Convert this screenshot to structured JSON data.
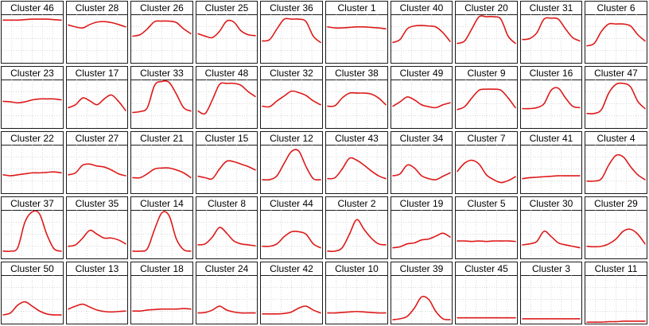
{
  "figure": {
    "rows": 5,
    "cols": 10,
    "line_color": "#dd1a1a",
    "frame_color": "#1a1a1a",
    "grid_color": "#c8c8c8"
  },
  "chart_data": {
    "type": "line",
    "grid": true,
    "x": [
      0,
      1,
      2,
      3,
      4,
      5,
      6,
      7,
      8
    ],
    "ylim": [
      0,
      1
    ],
    "panels": [
      {
        "title": "Cluster 46",
        "values": [
          0.88,
          0.88,
          0.88,
          0.89,
          0.9,
          0.9,
          0.9,
          0.89,
          0.88
        ]
      },
      {
        "title": "Cluster 28",
        "values": [
          0.78,
          0.74,
          0.72,
          0.79,
          0.84,
          0.85,
          0.83,
          0.79,
          0.74
        ]
      },
      {
        "title": "Cluster 26",
        "values": [
          0.55,
          0.58,
          0.7,
          0.85,
          0.86,
          0.86,
          0.83,
          0.7,
          0.6
        ]
      },
      {
        "title": "Cluster 25",
        "values": [
          0.6,
          0.55,
          0.52,
          0.65,
          0.86,
          0.84,
          0.66,
          0.58,
          0.56
        ]
      },
      {
        "title": "Cluster 36",
        "values": [
          0.45,
          0.48,
          0.7,
          0.9,
          0.9,
          0.9,
          0.85,
          0.55,
          0.42
        ]
      },
      {
        "title": "Cluster 1",
        "values": [
          0.74,
          0.72,
          0.72,
          0.73,
          0.74,
          0.74,
          0.73,
          0.72,
          0.7
        ]
      },
      {
        "title": "Cluster 40",
        "values": [
          0.42,
          0.48,
          0.7,
          0.76,
          0.77,
          0.76,
          0.74,
          0.62,
          0.44
        ]
      },
      {
        "title": "Cluster 20",
        "values": [
          0.4,
          0.45,
          0.7,
          0.95,
          0.95,
          0.95,
          0.9,
          0.55,
          0.4
        ]
      },
      {
        "title": "Cluster 31",
        "values": [
          0.48,
          0.5,
          0.62,
          0.9,
          0.92,
          0.9,
          0.7,
          0.52,
          0.45
        ]
      },
      {
        "title": "Cluster 6",
        "values": [
          0.35,
          0.4,
          0.65,
          0.8,
          0.8,
          0.8,
          0.76,
          0.58,
          0.45
        ]
      },
      {
        "title": "Cluster 23",
        "values": [
          0.55,
          0.54,
          0.52,
          0.54,
          0.58,
          0.6,
          0.6,
          0.6,
          0.58
        ]
      },
      {
        "title": "Cluster 17",
        "values": [
          0.42,
          0.48,
          0.62,
          0.56,
          0.48,
          0.6,
          0.68,
          0.55,
          0.36
        ]
      },
      {
        "title": "Cluster 33",
        "values": [
          0.32,
          0.34,
          0.42,
          0.88,
          0.96,
          0.94,
          0.7,
          0.42,
          0.35
        ]
      },
      {
        "title": "Cluster 48",
        "values": [
          0.35,
          0.3,
          0.58,
          0.9,
          0.92,
          0.92,
          0.88,
          0.75,
          0.65
        ]
      },
      {
        "title": "Cluster 32",
        "values": [
          0.45,
          0.44,
          0.56,
          0.66,
          0.76,
          0.73,
          0.67,
          0.56,
          0.48
        ]
      },
      {
        "title": "Cluster 38",
        "values": [
          0.45,
          0.46,
          0.62,
          0.72,
          0.72,
          0.72,
          0.7,
          0.62,
          0.48
        ]
      },
      {
        "title": "Cluster 49",
        "values": [
          0.45,
          0.54,
          0.64,
          0.58,
          0.48,
          0.44,
          0.42,
          0.48,
          0.52
        ]
      },
      {
        "title": "Cluster 9",
        "values": [
          0.38,
          0.44,
          0.62,
          0.78,
          0.8,
          0.8,
          0.78,
          0.62,
          0.42
        ]
      },
      {
        "title": "Cluster 16",
        "values": [
          0.4,
          0.4,
          0.42,
          0.5,
          0.78,
          0.82,
          0.62,
          0.45,
          0.42
        ]
      },
      {
        "title": "Cluster 47",
        "values": [
          0.3,
          0.3,
          0.38,
          0.72,
          0.9,
          0.92,
          0.85,
          0.55,
          0.4
        ]
      },
      {
        "title": "Cluster 22",
        "values": [
          0.38,
          0.36,
          0.38,
          0.4,
          0.42,
          0.42,
          0.43,
          0.44,
          0.42
        ]
      },
      {
        "title": "Cluster 27",
        "values": [
          0.38,
          0.42,
          0.58,
          0.6,
          0.56,
          0.54,
          0.48,
          0.4,
          0.36
        ]
      },
      {
        "title": "Cluster 21",
        "values": [
          0.32,
          0.32,
          0.4,
          0.5,
          0.52,
          0.52,
          0.48,
          0.42,
          0.32
        ]
      },
      {
        "title": "Cluster 15",
        "values": [
          0.35,
          0.32,
          0.3,
          0.5,
          0.66,
          0.65,
          0.6,
          0.55,
          0.48
        ]
      },
      {
        "title": "Cluster 12",
        "values": [
          0.28,
          0.28,
          0.36,
          0.62,
          0.86,
          0.87,
          0.55,
          0.3,
          0.28
        ]
      },
      {
        "title": "Cluster 43",
        "values": [
          0.3,
          0.32,
          0.5,
          0.72,
          0.68,
          0.58,
          0.46,
          0.36,
          0.3
        ]
      },
      {
        "title": "Cluster 34",
        "values": [
          0.36,
          0.4,
          0.58,
          0.52,
          0.36,
          0.3,
          0.28,
          0.35,
          0.42
        ]
      },
      {
        "title": "Cluster 7",
        "values": [
          0.45,
          0.62,
          0.68,
          0.6,
          0.38,
          0.28,
          0.22,
          0.26,
          0.34
        ]
      },
      {
        "title": "Cluster 41",
        "values": [
          0.3,
          0.32,
          0.33,
          0.34,
          0.35,
          0.36,
          0.36,
          0.36,
          0.36
        ]
      },
      {
        "title": "Cluster 4",
        "values": [
          0.25,
          0.25,
          0.3,
          0.58,
          0.78,
          0.75,
          0.55,
          0.38,
          0.28
        ]
      },
      {
        "title": "Cluster 37",
        "values": [
          0.15,
          0.15,
          0.22,
          0.75,
          0.96,
          0.92,
          0.5,
          0.2,
          0.15
        ]
      },
      {
        "title": "Cluster 35",
        "values": [
          0.25,
          0.28,
          0.42,
          0.58,
          0.5,
          0.42,
          0.42,
          0.38,
          0.3
        ]
      },
      {
        "title": "Cluster 14",
        "values": [
          0.15,
          0.15,
          0.2,
          0.6,
          0.94,
          0.88,
          0.4,
          0.18,
          0.15
        ]
      },
      {
        "title": "Cluster 8",
        "values": [
          0.28,
          0.3,
          0.44,
          0.64,
          0.52,
          0.36,
          0.3,
          0.28,
          0.26
        ]
      },
      {
        "title": "Cluster 44",
        "values": [
          0.25,
          0.25,
          0.3,
          0.45,
          0.55,
          0.55,
          0.5,
          0.3,
          0.22
        ]
      },
      {
        "title": "Cluster 2",
        "values": [
          0.15,
          0.15,
          0.22,
          0.5,
          0.8,
          0.6,
          0.42,
          0.3,
          0.28
        ]
      },
      {
        "title": "Cluster 19",
        "values": [
          0.22,
          0.24,
          0.3,
          0.32,
          0.38,
          0.4,
          0.46,
          0.52,
          0.44
        ]
      },
      {
        "title": "Cluster 5",
        "values": [
          0.36,
          0.36,
          0.35,
          0.36,
          0.35,
          0.36,
          0.36,
          0.36,
          0.35
        ]
      },
      {
        "title": "Cluster 30",
        "values": [
          0.28,
          0.3,
          0.35,
          0.56,
          0.45,
          0.32,
          0.28,
          0.25,
          0.22
        ]
      },
      {
        "title": "Cluster 29",
        "values": [
          0.25,
          0.24,
          0.25,
          0.3,
          0.4,
          0.56,
          0.6,
          0.5,
          0.3
        ]
      },
      {
        "title": "Cluster 50",
        "values": [
          0.18,
          0.22,
          0.38,
          0.45,
          0.36,
          0.26,
          0.2,
          0.18,
          0.18
        ]
      },
      {
        "title": "Cluster 13",
        "values": [
          0.3,
          0.36,
          0.4,
          0.34,
          0.28,
          0.25,
          0.24,
          0.25,
          0.26
        ]
      },
      {
        "title": "Cluster 18",
        "values": [
          0.26,
          0.26,
          0.28,
          0.29,
          0.3,
          0.3,
          0.3,
          0.31,
          0.3
        ]
      },
      {
        "title": "Cluster 24",
        "values": [
          0.22,
          0.23,
          0.28,
          0.36,
          0.28,
          0.24,
          0.22,
          0.22,
          0.22
        ]
      },
      {
        "title": "Cluster 42",
        "values": [
          0.2,
          0.2,
          0.2,
          0.21,
          0.24,
          0.32,
          0.36,
          0.28,
          0.22
        ]
      },
      {
        "title": "Cluster 10",
        "values": [
          0.22,
          0.22,
          0.23,
          0.24,
          0.25,
          0.24,
          0.23,
          0.22,
          0.22
        ]
      },
      {
        "title": "Cluster 39",
        "values": [
          0.08,
          0.1,
          0.15,
          0.32,
          0.55,
          0.5,
          0.25,
          0.1,
          0.08
        ]
      },
      {
        "title": "Cluster 45",
        "values": [
          0.12,
          0.12,
          0.12,
          0.12,
          0.12,
          0.12,
          0.12,
          0.12,
          0.12
        ]
      },
      {
        "title": "Cluster 3",
        "values": [
          0.1,
          0.1,
          0.1,
          0.1,
          0.1,
          0.1,
          0.1,
          0.1,
          0.1
        ]
      },
      {
        "title": "Cluster 11",
        "values": [
          0.03,
          0.03,
          0.03,
          0.04,
          0.04,
          0.05,
          0.05,
          0.05,
          0.05
        ]
      }
    ]
  }
}
